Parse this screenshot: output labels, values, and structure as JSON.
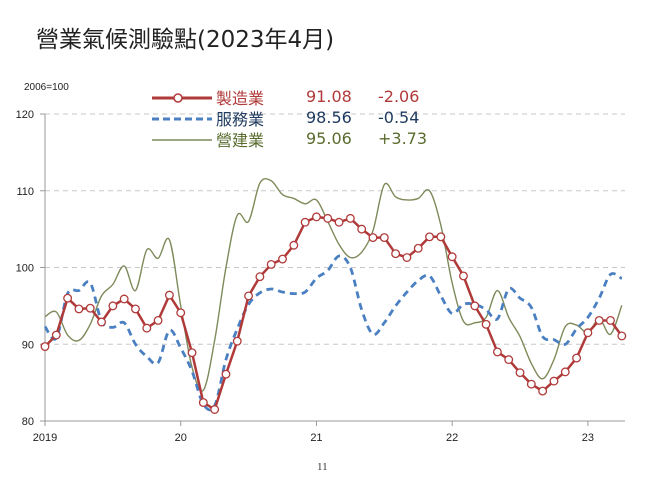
{
  "title": "營業氣候測驗點(2023年4月)",
  "base_label": "2006=100",
  "page_number": "11",
  "legend": [
    {
      "name": "製造業",
      "value": "91.08",
      "change": "-2.06",
      "color": "#b03a3a",
      "style": "line-circle-markers"
    },
    {
      "name": "服務業",
      "value": "98.56",
      "change": "-0.54",
      "color": "#4a7fc1",
      "text_color": "#1f3a5f",
      "style": "dashed"
    },
    {
      "name": "營建業",
      "value": "95.06",
      "change": "+3.73",
      "color": "#7d8a5a",
      "text_color": "#5a6b2e",
      "style": "thin-solid"
    }
  ],
  "axes": {
    "y_ticks": [
      "80",
      "90",
      "100",
      "110",
      "120"
    ],
    "x_ticks": [
      "2019",
      "20",
      "21",
      "22",
      "23"
    ]
  },
  "chart_data": {
    "type": "line",
    "title": "營業氣候測驗點(2023年4月)",
    "xlabel": "",
    "ylabel": "2006=100",
    "ylim": [
      80,
      120
    ],
    "grid": "horizontal dashed",
    "legend_position": "top-inside",
    "x_start": "2019-01",
    "x_end": "2023-04",
    "frequency": "monthly",
    "x_tick_labels": [
      "2019",
      "20",
      "21",
      "22",
      "23"
    ],
    "series": [
      {
        "name": "製造業",
        "latest": 91.08,
        "change": -2.06,
        "values": [
          89.7,
          91.2,
          96.0,
          94.6,
          94.7,
          92.9,
          95.0,
          95.9,
          94.6,
          92.1,
          93.1,
          96.4,
          94.1,
          88.9,
          82.4,
          81.5,
          86.1,
          90.4,
          96.3,
          98.8,
          100.4,
          101.1,
          102.9,
          105.9,
          106.6,
          106.4,
          105.9,
          106.4,
          105.0,
          103.9,
          103.9,
          101.8,
          101.3,
          102.5,
          104.0,
          104.0,
          101.4,
          98.9,
          95.0,
          92.6,
          89.0,
          88.0,
          86.3,
          84.8,
          83.9,
          85.2,
          86.4,
          88.2,
          91.5,
          93.1,
          93.1,
          91.08
        ]
      },
      {
        "name": "服務業",
        "latest": 98.56,
        "change": -0.54,
        "values": [
          92.3,
          90.8,
          96.6,
          97.0,
          98.0,
          93.0,
          92.2,
          92.8,
          90.0,
          88.4,
          87.6,
          91.8,
          89.5,
          86.5,
          82.2,
          82.0,
          88.0,
          92.0,
          95.2,
          96.7,
          97.2,
          96.8,
          96.6,
          96.8,
          98.6,
          99.6,
          101.5,
          100.0,
          94.5,
          91.3,
          92.8,
          95.0,
          96.8,
          98.3,
          98.9,
          96.3,
          94.0,
          95.2,
          95.2,
          94.5,
          93.3,
          97.2,
          96.0,
          94.8,
          91.0,
          90.6,
          90.0,
          92.0,
          93.5,
          96.0,
          99.1,
          98.56
        ]
      },
      {
        "name": "營建業",
        "latest": 95.06,
        "change": 3.73,
        "values": [
          93.6,
          94.2,
          91.2,
          90.5,
          92.6,
          96.3,
          97.8,
          100.2,
          97.0,
          102.3,
          101.2,
          103.6,
          95.0,
          87.0,
          84.0,
          90.5,
          100.0,
          106.8,
          106.0,
          111.0,
          111.3,
          109.5,
          109.0,
          108.3,
          108.8,
          106.0,
          103.0,
          101.3,
          102.0,
          104.8,
          110.8,
          109.2,
          108.8,
          109.0,
          110.0,
          105.5,
          98.0,
          93.0,
          92.8,
          93.5,
          97.0,
          93.5,
          91.0,
          87.5,
          85.5,
          88.0,
          92.3,
          92.5,
          91.5,
          93.3,
          91.3,
          95.06
        ]
      }
    ]
  }
}
